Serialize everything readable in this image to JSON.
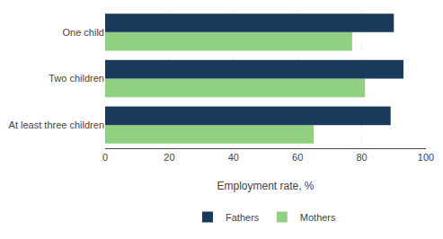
{
  "chart_data": {
    "type": "bar",
    "orientation": "horizontal",
    "categories": [
      "At least three children",
      "Two children",
      "One child"
    ],
    "series": [
      {
        "name": "Fathers",
        "color": "#1a3a5c",
        "values": [
          89,
          93,
          90
        ]
      },
      {
        "name": "Mothers",
        "color": "#90d080",
        "values": [
          65,
          81,
          77
        ]
      }
    ],
    "xlabel": "Employment rate, %",
    "xlim": [
      0,
      100
    ],
    "xticks": [
      0,
      20,
      40,
      60,
      80,
      100
    ],
    "grid": true,
    "legend": "bottom"
  }
}
